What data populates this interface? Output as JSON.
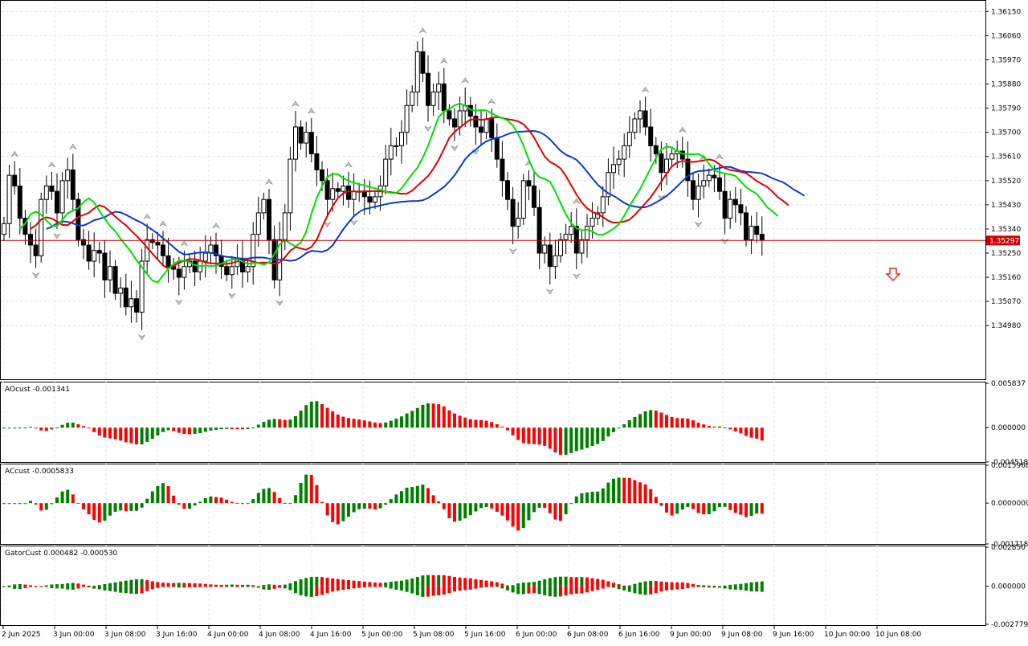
{
  "main_chart": {
    "price_axis_labels": [
      "1.36150",
      "1.36060",
      "1.35970",
      "1.35880",
      "1.35790",
      "1.35700",
      "1.35610",
      "1.35520",
      "1.35430",
      "1.35340",
      "1.35250",
      "1.35160",
      "1.35070",
      "1.34980"
    ],
    "price_range": [
      1.3478,
      1.3619
    ],
    "current_price": "1.35297",
    "current_price_value": 1.35297,
    "colors": {
      "jaw": "#0b3cc8",
      "teeth": "#e00000",
      "lips": "#00e000",
      "price_line": "#c00000",
      "bull": "#ffffff",
      "bear": "#000000"
    }
  },
  "ao_panel": {
    "label": "AOcust -0.001341",
    "axis_labels": [
      "0.005837",
      "0.000000",
      "-0.004518"
    ],
    "range": [
      -0.004518,
      0.005837
    ]
  },
  "ac_panel": {
    "label": "ACcust -0.0005833",
    "axis_labels": [
      "0.0015968",
      "0.0000000",
      "-0.0017189"
    ],
    "range": [
      -0.0017189,
      0.0015968
    ]
  },
  "gator_panel": {
    "label": "GatorCust 0.000482 -0.000530",
    "axis_labels": [
      "0.002850",
      "0.000000",
      "-0.002779"
    ],
    "range": [
      -0.002779,
      0.00285
    ]
  },
  "time_axis": [
    "2 Jun 2025",
    "3 Jun 00:00",
    "3 Jun 08:00",
    "3 Jun 16:00",
    "4 Jun 00:00",
    "4 Jun 08:00",
    "4 Jun 16:00",
    "5 Jun 00:00",
    "5 Jun 08:00",
    "5 Jun 16:00",
    "6 Jun 00:00",
    "6 Jun 08:00",
    "6 Jun 16:00",
    "9 Jun 00:00",
    "9 Jun 08:00",
    "9 Jun 16:00",
    "10 Jun 00:00",
    "10 Jun 08:00"
  ],
  "chart_data": {
    "type": "line",
    "instrument_note": "",
    "closes": [
      1.3536,
      1.3554,
      1.355,
      1.3538,
      1.3532,
      1.3528,
      1.3524,
      1.3545,
      1.355,
      1.3548,
      1.354,
      1.3552,
      1.3556,
      1.3545,
      1.353,
      1.3528,
      1.3522,
      1.3526,
      1.3525,
      1.3515,
      1.352,
      1.351,
      1.3512,
      1.3505,
      1.3508,
      1.3503,
      1.3522,
      1.353,
      1.3529,
      1.3528,
      1.3524,
      1.352,
      1.3519,
      1.3516,
      1.352,
      1.3522,
      1.3518,
      1.3522,
      1.3525,
      1.3528,
      1.3524,
      1.352,
      1.3517,
      1.352,
      1.3523,
      1.3518,
      1.352,
      1.3532,
      1.354,
      1.3545,
      1.353,
      1.3515,
      1.353,
      1.354,
      1.356,
      1.3572,
      1.3566,
      1.357,
      1.3562,
      1.3556,
      1.3552,
      1.3545,
      1.3549,
      1.3548,
      1.355,
      1.3545,
      1.3548,
      1.3548,
      1.3546,
      1.3544,
      1.3546,
      1.355,
      1.356,
      1.3565,
      1.3565,
      1.357,
      1.358,
      1.3585,
      1.36,
      1.3592,
      1.358,
      1.3585,
      1.3588,
      1.3578,
      1.3575,
      1.3572,
      1.3578,
      1.358,
      1.3576,
      1.3572,
      1.357,
      1.3575,
      1.3568,
      1.356,
      1.3552,
      1.3545,
      1.3535,
      1.3538,
      1.3552,
      1.355,
      1.3542,
      1.3525,
      1.3528,
      1.352,
      1.3524,
      1.353,
      1.3532,
      1.3535,
      1.3525,
      1.353,
      1.3535,
      1.3538,
      1.354,
      1.3546,
      1.3555,
      1.3558,
      1.356,
      1.3565,
      1.357,
      1.3575,
      1.3578,
      1.3572,
      1.3565,
      1.3562,
      1.3555,
      1.356,
      1.3562,
      1.3563,
      1.356,
      1.3552,
      1.3545,
      1.355,
      1.3552,
      1.3554,
      1.3553,
      1.3548,
      1.3538,
      1.3545,
      1.3543,
      1.354,
      1.353,
      1.3535,
      1.3532,
      1.353
    ],
    "axis_ranges": {
      "price": [
        1.3478,
        1.3619
      ]
    }
  }
}
